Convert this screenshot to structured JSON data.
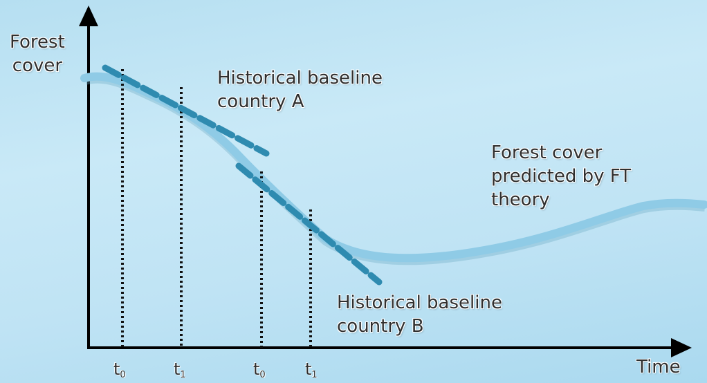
{
  "axes": {
    "y_label_line1": "Forest",
    "y_label_line2": "cover",
    "x_label": "Time"
  },
  "annotations": {
    "baseline_a_line1": "Historical baseline",
    "baseline_a_line2": "country A",
    "baseline_b_line1": "Historical baseline",
    "baseline_b_line2": "country B",
    "ft_line1": "Forest cover",
    "ft_line2": "predicted by FT",
    "ft_line3": "theory"
  },
  "ticks": [
    {
      "base": "t",
      "sub": "0"
    },
    {
      "base": "t",
      "sub": "1"
    },
    {
      "base": "t",
      "sub": "0"
    },
    {
      "base": "t",
      "sub": "1"
    }
  ],
  "colors": {
    "curve": "#8fcbe6",
    "baseline_dashes": "#2f8bb0",
    "axis": "#000000",
    "background": "#bfe3f4"
  }
}
